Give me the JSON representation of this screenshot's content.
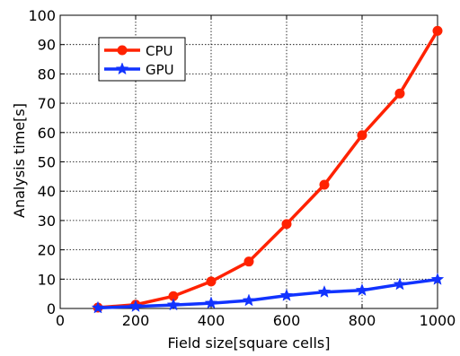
{
  "chart_data": {
    "type": "line",
    "title": "",
    "xlabel": "Field size[square cells]",
    "ylabel": "Analysis time[s]",
    "x": [
      100,
      200,
      300,
      400,
      500,
      600,
      700,
      800,
      900,
      1000
    ],
    "xlim": [
      0,
      1000
    ],
    "ylim": [
      0,
      100
    ],
    "xticks": [
      0,
      200,
      400,
      600,
      800,
      1000
    ],
    "yticks": [
      0,
      10,
      20,
      30,
      40,
      50,
      60,
      70,
      80,
      90,
      100
    ],
    "grid": true,
    "legend_position": "top-left",
    "series": [
      {
        "name": "CPU",
        "color": "#ff2200",
        "marker": "circle",
        "values": [
          0.3,
          1.3,
          4.2,
          9.2,
          16.0,
          28.8,
          42.2,
          59.1,
          73.3,
          94.7
        ]
      },
      {
        "name": "GPU",
        "color": "#1133ff",
        "marker": "star",
        "values": [
          0.2,
          0.7,
          1.2,
          1.8,
          2.7,
          4.4,
          5.6,
          6.2,
          8.2,
          9.9
        ]
      }
    ]
  }
}
